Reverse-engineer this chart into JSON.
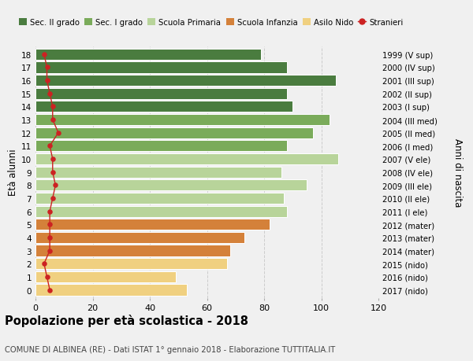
{
  "ages": [
    18,
    17,
    16,
    15,
    14,
    13,
    12,
    11,
    10,
    9,
    8,
    7,
    6,
    5,
    4,
    3,
    2,
    1,
    0
  ],
  "years": [
    "1999 (V sup)",
    "2000 (IV sup)",
    "2001 (III sup)",
    "2002 (II sup)",
    "2003 (I sup)",
    "2004 (III med)",
    "2005 (II med)",
    "2006 (I med)",
    "2007 (V ele)",
    "2008 (IV ele)",
    "2009 (III ele)",
    "2010 (II ele)",
    "2011 (I ele)",
    "2012 (mater)",
    "2013 (mater)",
    "2014 (mater)",
    "2015 (nido)",
    "2016 (nido)",
    "2017 (nido)"
  ],
  "bar_values": [
    79,
    88,
    105,
    88,
    90,
    103,
    97,
    88,
    106,
    86,
    95,
    87,
    88,
    82,
    73,
    68,
    67,
    49,
    53
  ],
  "bar_colors": [
    "#4a7c3f",
    "#4a7c3f",
    "#4a7c3f",
    "#4a7c3f",
    "#4a7c3f",
    "#7aab5a",
    "#7aab5a",
    "#7aab5a",
    "#b8d49a",
    "#b8d49a",
    "#b8d49a",
    "#b8d49a",
    "#b8d49a",
    "#d4813a",
    "#d4813a",
    "#d4813a",
    "#f0d080",
    "#f0d080",
    "#f0d080"
  ],
  "stranieri_values": [
    3,
    4,
    4,
    5,
    6,
    6,
    8,
    5,
    6,
    6,
    7,
    6,
    5,
    5,
    5,
    5,
    3,
    4,
    5
  ],
  "stranieri_color": "#cc2222",
  "legend_labels": [
    "Sec. II grado",
    "Sec. I grado",
    "Scuola Primaria",
    "Scuola Infanzia",
    "Asilo Nido",
    "Stranieri"
  ],
  "legend_colors": [
    "#4a7c3f",
    "#7aab5a",
    "#b8d49a",
    "#d4813a",
    "#f0d080",
    "#cc2222"
  ],
  "ylabel_right": "Anni di nascita",
  "title": "Popolazione per età scolastica - 2018",
  "subtitle": "COMUNE DI ALBINEA (RE) - Dati ISTAT 1° gennaio 2018 - Elaborazione TUTTITALIA.IT",
  "xlim": [
    0,
    120
  ],
  "bg_color": "#f0f0f0",
  "grid_color": "#cccccc"
}
